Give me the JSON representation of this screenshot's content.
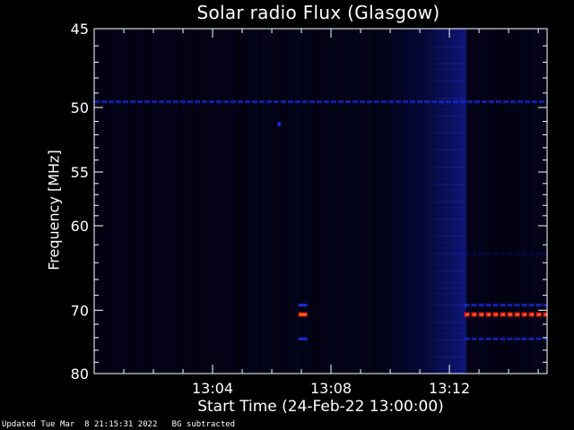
{
  "chart_data": {
    "type": "heatmap",
    "title": "Solar radio Flux (Glasgow)",
    "xlabel": "Start Time (24-Feb-22 13:00:00)",
    "ylabel": "Frequency [MHz]",
    "footer": "Updated Tue Mar  8 21:15:31 2022   BG subtracted",
    "x_unit": "minutes after 13:00:00",
    "xlim": [
      0,
      15.3
    ],
    "ylim": [
      45,
      80
    ],
    "y_scale": "reciprocal",
    "x_ticks": [
      {
        "label": "13:04",
        "value": 4
      },
      {
        "label": "13:08",
        "value": 8
      },
      {
        "label": "13:12",
        "value": 12
      }
    ],
    "x_minor_ticks": [
      1,
      2,
      3,
      5,
      6,
      7,
      9,
      10,
      11,
      13,
      14,
      15
    ],
    "y_ticks": [
      {
        "label": "45",
        "value": 45
      },
      {
        "label": "50",
        "value": 50
      },
      {
        "label": "55",
        "value": 55
      },
      {
        "label": "60",
        "value": 60
      },
      {
        "label": "70",
        "value": 70
      },
      {
        "label": "80",
        "value": 80
      }
    ],
    "y_minor_ticks": [
      46,
      47,
      48,
      49,
      51,
      52,
      53,
      54,
      56,
      57,
      58,
      59,
      62,
      64,
      66,
      68,
      72,
      74,
      76,
      78
    ],
    "colorscale": [
      "#000000",
      "#0a0a60",
      "#1a2ad8",
      "#e01a1a",
      "#ff7a10"
    ],
    "features": [
      {
        "type": "band",
        "freq": 49.6,
        "x": [
          0,
          15.3
        ],
        "intensity": 0.55
      },
      {
        "type": "broadband",
        "freq": [
          45,
          80
        ],
        "x": [
          10.0,
          12.5
        ],
        "intensity": 0.45
      },
      {
        "type": "band",
        "freq": 63.0,
        "x": [
          12.5,
          15.3
        ],
        "intensity": 0.25
      },
      {
        "type": "band",
        "freq": 69.3,
        "x": [
          12.5,
          15.3
        ],
        "intensity": 0.6
      },
      {
        "type": "band",
        "freq": 70.6,
        "x": [
          12.5,
          15.3
        ],
        "intensity": 1.0
      },
      {
        "type": "band",
        "freq": 74.2,
        "x": [
          12.5,
          15.3
        ],
        "intensity": 0.55
      },
      {
        "type": "band",
        "freq": 70.6,
        "x": [
          6.9,
          7.2
        ],
        "intensity": 1.0
      },
      {
        "type": "band",
        "freq": 69.3,
        "x": [
          6.9,
          7.2
        ],
        "intensity": 0.6
      },
      {
        "type": "band",
        "freq": 74.2,
        "x": [
          6.9,
          7.2
        ],
        "intensity": 0.5
      },
      {
        "type": "spot",
        "freq": 51.2,
        "x": [
          6.2,
          6.3
        ],
        "intensity": 0.6
      }
    ]
  }
}
